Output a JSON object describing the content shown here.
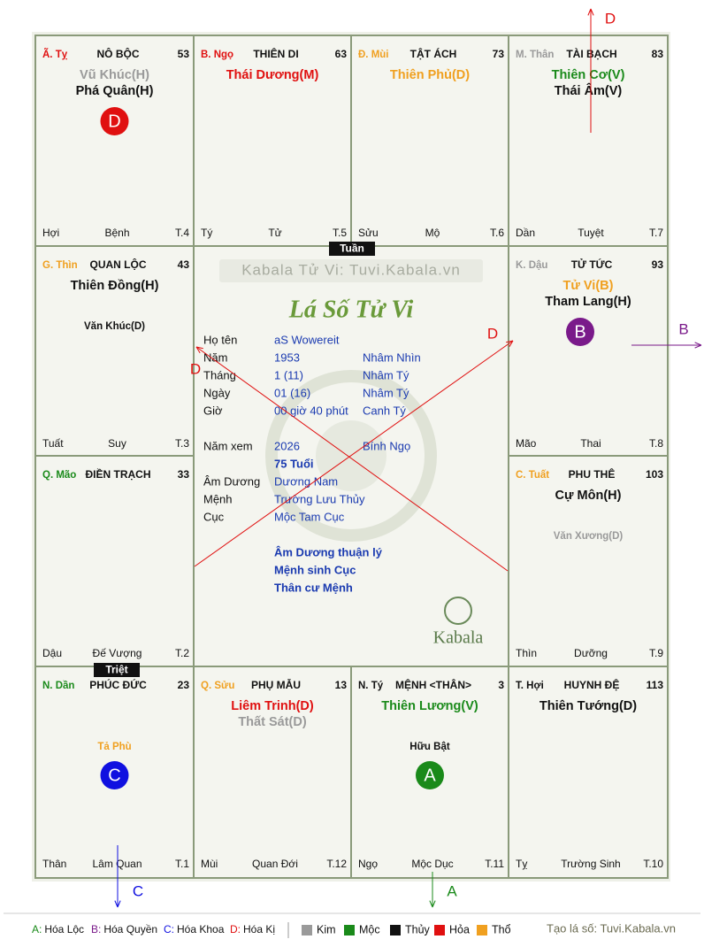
{
  "palaces": [
    {
      "stem": "Ã. Tỵ",
      "stem_color": "#e01010",
      "name": "NÔ BỘC",
      "age": 53,
      "stars": [
        {
          "text": "Vũ Khúc(H)",
          "color": "#9a9a9a"
        },
        {
          "text": "Phá Quân(H)",
          "color": "#111111"
        }
      ],
      "badge": {
        "letter": "D",
        "color": "#e01010"
      },
      "branch": "Hợi",
      "phase": "Bệnh",
      "month": "T.4"
    },
    {
      "stem": "B. Ngọ",
      "stem_color": "#e01010",
      "name": "THIÊN DI",
      "age": 63,
      "stars": [
        {
          "text": "Thái Dương(M)",
          "color": "#e01010"
        }
      ],
      "branch": "Tý",
      "phase": "Tử",
      "month": "T.5"
    },
    {
      "stem": "Đ. Mùi",
      "stem_color": "#f0a020",
      "name": "TẬT ÁCH",
      "age": 73,
      "stars": [
        {
          "text": "Thiên Phủ(D)",
          "color": "#f0a020"
        }
      ],
      "branch": "Sửu",
      "phase": "Mộ",
      "month": "T.6"
    },
    {
      "stem": "M. Thân",
      "stem_color": "#9a9a9a",
      "name": "TÀI BẠCH",
      "age": 83,
      "stars": [
        {
          "text": "Thiên Cơ(V)",
          "color": "#1a8a1a"
        },
        {
          "text": "Thái Âm(V)",
          "color": "#111111"
        }
      ],
      "branch": "Dần",
      "phase": "Tuyệt",
      "month": "T.7"
    },
    {
      "stem": "G. Thìn",
      "stem_color": "#f0a020",
      "name": "QUAN LỘC",
      "age": 43,
      "stars": [
        {
          "text": "Thiên Đồng(H)",
          "color": "#111111"
        }
      ],
      "minor": {
        "text": "Văn Khúc(D)",
        "color": "#111111"
      },
      "branch": "Tuất",
      "phase": "Suy",
      "month": "T.3"
    },
    {
      "stem": "K. Dậu",
      "stem_color": "#9a9a9a",
      "name": "TỬ TỨC",
      "age": 93,
      "stars": [
        {
          "text": "Tử Vi(B)",
          "color": "#f0a020"
        },
        {
          "text": "Tham Lang(H)",
          "color": "#111111"
        }
      ],
      "badge": {
        "letter": "B",
        "color": "#7a1a8a"
      },
      "branch": "Mão",
      "phase": "Thai",
      "month": "T.8"
    },
    {
      "stem": "Q. Mão",
      "stem_color": "#1a8a1a",
      "name": "ĐIỀN TRẠCH",
      "age": 33,
      "stars": [],
      "branch": "Dậu",
      "phase": "Đế Vượng",
      "month": "T.2"
    },
    {
      "stem": "C. Tuất",
      "stem_color": "#f0a020",
      "name": "PHU THÊ",
      "age": 103,
      "stars": [
        {
          "text": "Cự Môn(H)",
          "color": "#111111"
        }
      ],
      "minor": {
        "text": "Văn Xương(D)",
        "color": "#9a9a9a"
      },
      "branch": "Thìn",
      "phase": "Dưỡng",
      "month": "T.9"
    },
    {
      "stem": "N. Dần",
      "stem_color": "#1a8a1a",
      "name": "PHÚC ĐỨC",
      "age": 23,
      "stars": [],
      "minor": {
        "text": "Tả Phù",
        "color": "#f0a020"
      },
      "badge": {
        "letter": "C",
        "color": "#1010e0"
      },
      "branch": "Thân",
      "phase": "Lâm Quan",
      "month": "T.1"
    },
    {
      "stem": "Q. Sửu",
      "stem_color": "#f0a020",
      "name": "PHỤ MẪU",
      "age": 13,
      "stars": [
        {
          "text": "Liêm Trinh(D)",
          "color": "#e01010"
        },
        {
          "text": "Thất Sát(D)",
          "color": "#9a9a9a"
        }
      ],
      "branch": "Mùi",
      "phase": "Quan Đới",
      "month": "T.12"
    },
    {
      "stem": "N. Tý",
      "stem_color": "#111111",
      "name": "MỆNH <THÂN>",
      "age": 3,
      "stars": [
        {
          "text": "Thiên Lương(V)",
          "color": "#1a8a1a"
        }
      ],
      "minor": {
        "text": "Hữu Bật",
        "color": "#111111"
      },
      "badge": {
        "letter": "A",
        "color": "#1a8a1a"
      },
      "branch": "Ngọ",
      "phase": "Mộc Dục",
      "month": "T.11"
    },
    {
      "stem": "T. Hợi",
      "stem_color": "#111111",
      "name": "HUYNH ĐỆ",
      "age": 113,
      "stars": [
        {
          "text": "Thiên Tướng(D)",
          "color": "#111111"
        }
      ],
      "branch": "Tỵ",
      "phase": "Trường Sinh",
      "month": "T.10"
    }
  ],
  "tuan": "Tuần",
  "triet": "Triệt",
  "center": {
    "watermark": "Kabala Tử Vi: Tuvi.Kabala.vn",
    "title": "Lá Số Tử Vi",
    "info": [
      {
        "label": "Họ tên",
        "value": "aS Wowereit"
      },
      {
        "label": "Năm",
        "value": "1953",
        "extra": "Nhâm Nhìn"
      },
      {
        "label": "Tháng",
        "value": "1  (11)",
        "extra": "Nhâm Tý"
      },
      {
        "label": "Ngày",
        "value": "01  (16)",
        "extra": "Nhâm Tý"
      },
      {
        "label": "Giờ",
        "value": "00 giờ 40 phút",
        "extra": "Canh Tý"
      },
      {
        "label": "Năm xem",
        "value": "2026",
        "extra": "Bính Ngọ"
      },
      {
        "value": "75 Tuổi"
      },
      {
        "label": "Âm Dương",
        "value": "Dương Nam"
      },
      {
        "label": "Mệnh",
        "value": "Trường Lưu Thủy"
      },
      {
        "label": "Cục",
        "value": "Mộc Tam Cục"
      }
    ],
    "notes": [
      "Âm Dương thuận lý",
      "Mệnh sinh Cục",
      "Thân cư Mệnh"
    ],
    "logo": "Kabala",
    "cross_labels": [
      "D",
      "D"
    ]
  },
  "arrows": [
    {
      "label": "D",
      "color": "#e01010"
    },
    {
      "label": "B",
      "color": "#7a1a8a"
    },
    {
      "label": "C",
      "color": "#1010e0"
    },
    {
      "label": "A",
      "color": "#1a8a1a"
    }
  ],
  "legend": {
    "hoa": [
      {
        "key": "A:",
        "text": "Hóa Lộc",
        "color": "#1a8a1a"
      },
      {
        "key": "B:",
        "text": "Hóa Quyền",
        "color": "#7a1a8a"
      },
      {
        "key": "C:",
        "text": "Hóa Khoa",
        "color": "#1010e0"
      },
      {
        "key": "D:",
        "text": "Hóa Kị",
        "color": "#e01010"
      }
    ],
    "elements": [
      {
        "text": "Kim",
        "color": "#9a9a9a"
      },
      {
        "text": "Mộc",
        "color": "#1a8a1a"
      },
      {
        "text": "Thủy",
        "color": "#111111"
      },
      {
        "text": "Hỏa",
        "color": "#e01010"
      },
      {
        "text": "Thổ",
        "color": "#f0a020"
      }
    ],
    "credit": "Tạo lá số: Tuvi.Kabala.vn"
  }
}
